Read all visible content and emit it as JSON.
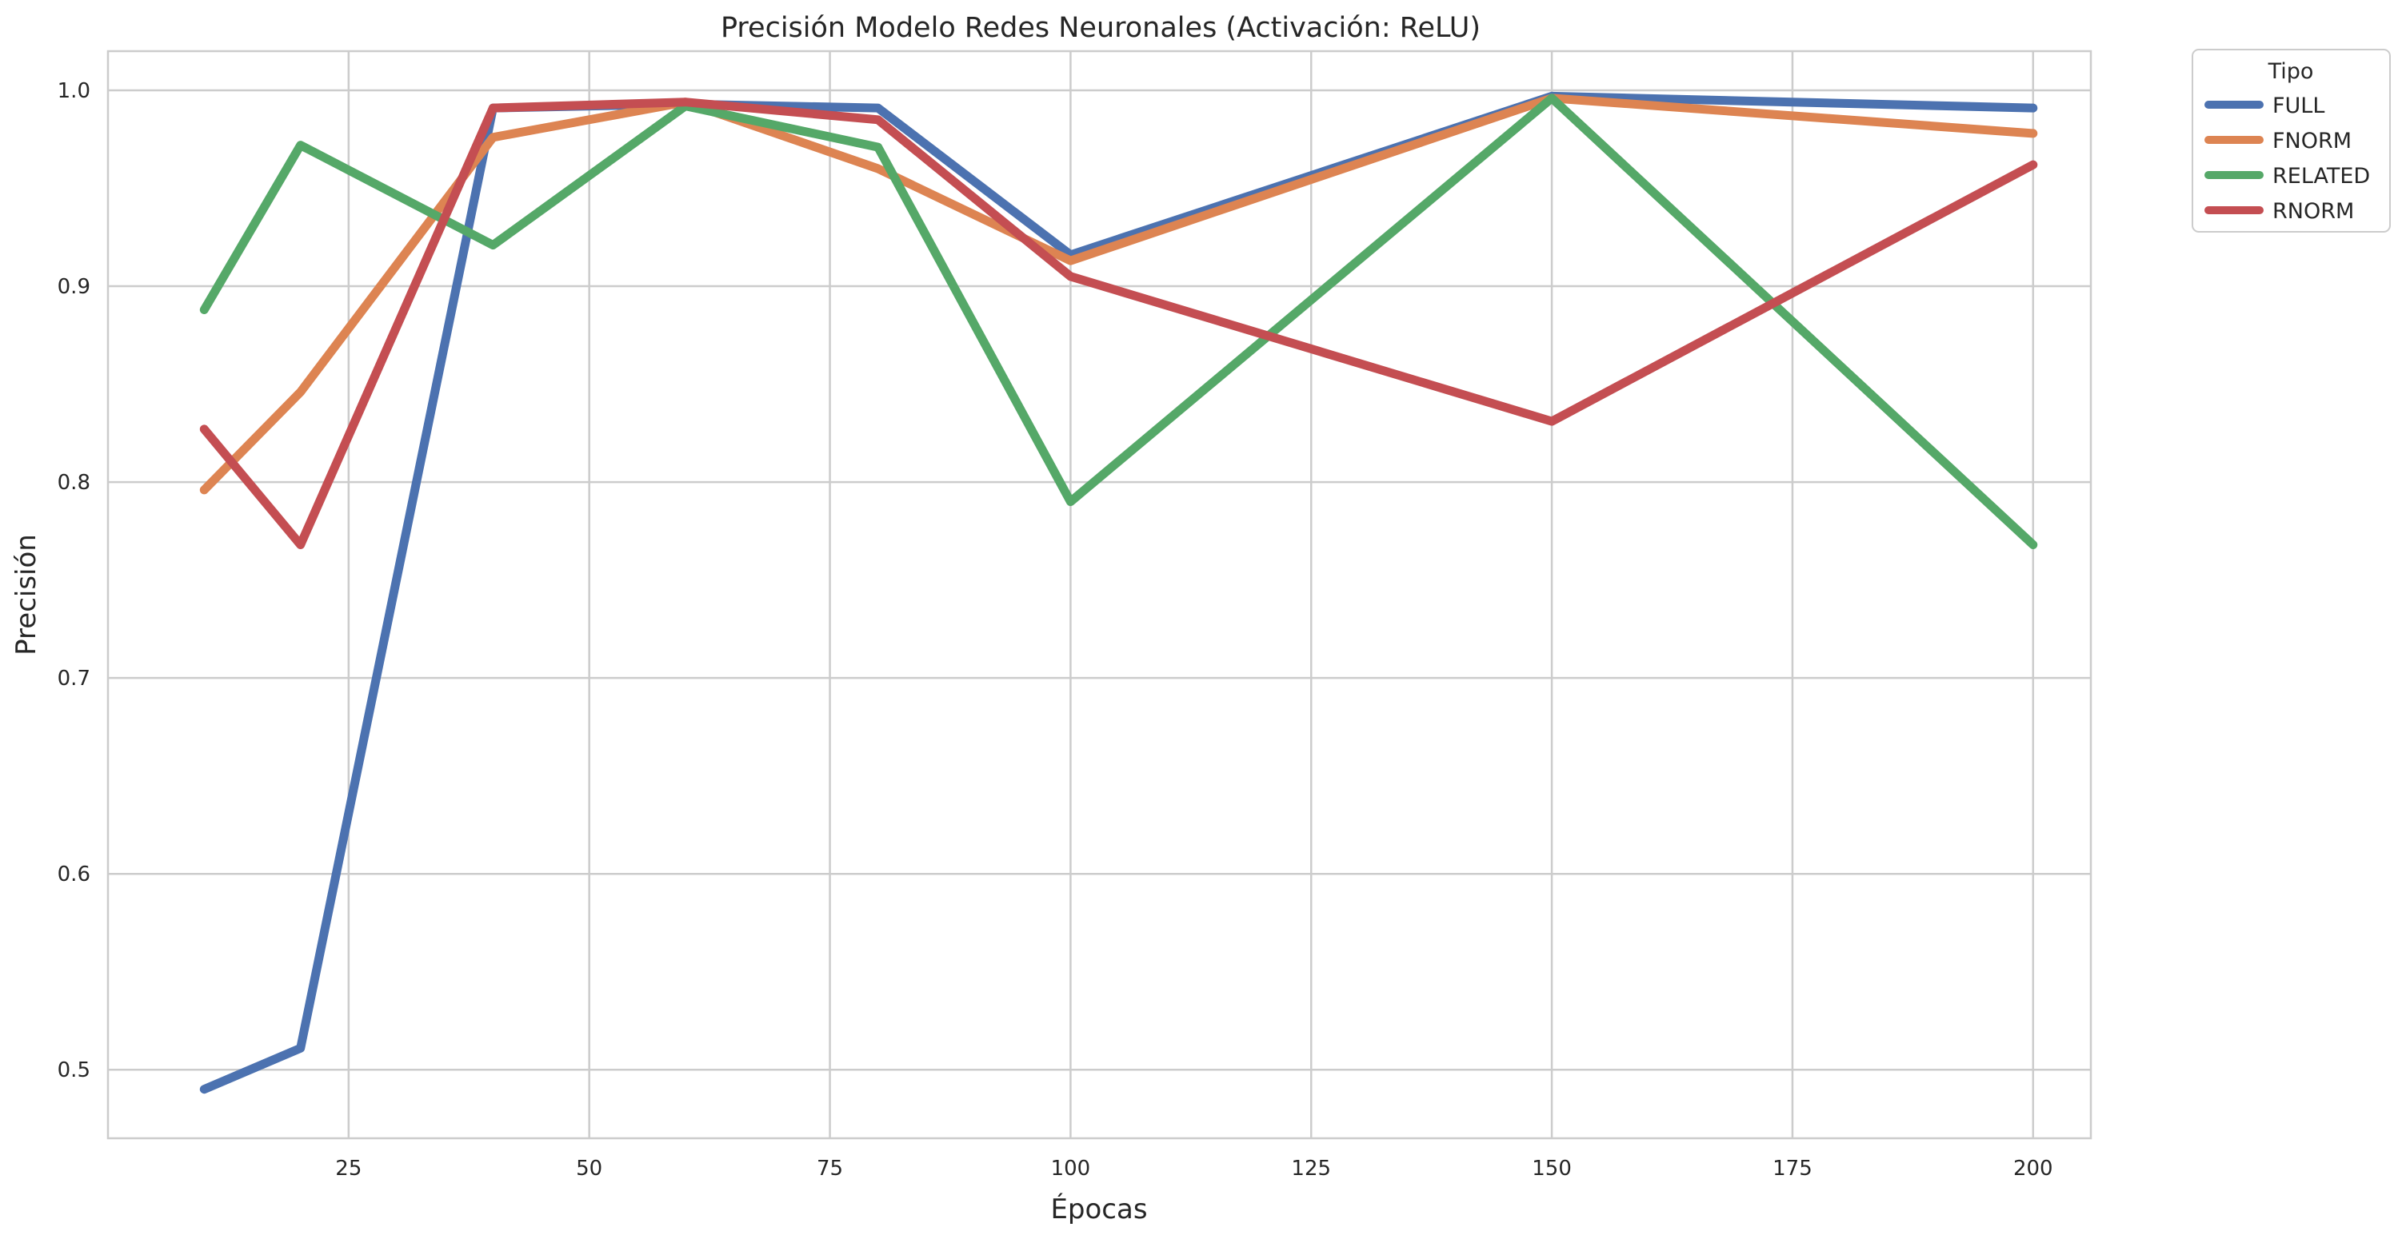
{
  "chart_data": {
    "type": "line",
    "title": "Precisión Modelo Redes Neuronales (Activación: ReLU)",
    "xlabel": "Épocas",
    "ylabel": "Precisión",
    "xlim": [
      0,
      206
    ],
    "ylim": [
      0.465,
      1.02
    ],
    "x": [
      10,
      20,
      40,
      60,
      80,
      100,
      150,
      200
    ],
    "xticks": [
      "25",
      "50",
      "75",
      "100",
      "125",
      "150",
      "175",
      "200"
    ],
    "yticks": [
      "0.5",
      "0.6",
      "0.7",
      "0.8",
      "0.9",
      "1.0"
    ],
    "grid": true,
    "legend": {
      "title": "Tipo",
      "placement": "outside top-right"
    },
    "series": [
      {
        "name": "FULL",
        "color": "#4c72b0",
        "values": [
          0.49,
          0.511,
          0.991,
          0.993,
          0.991,
          0.916,
          0.997,
          0.991
        ]
      },
      {
        "name": "FNORM",
        "color": "#dd8452",
        "values": [
          0.796,
          0.846,
          0.976,
          0.994,
          0.96,
          0.913,
          0.996,
          0.978
        ]
      },
      {
        "name": "RELATED",
        "color": "#55a868",
        "values": [
          0.888,
          0.972,
          0.921,
          0.992,
          0.971,
          0.79,
          0.996,
          0.768
        ]
      },
      {
        "name": "RNORM",
        "color": "#c44e52",
        "values": [
          0.827,
          0.768,
          0.991,
          0.994,
          0.985,
          0.905,
          0.831,
          0.962
        ]
      }
    ]
  }
}
